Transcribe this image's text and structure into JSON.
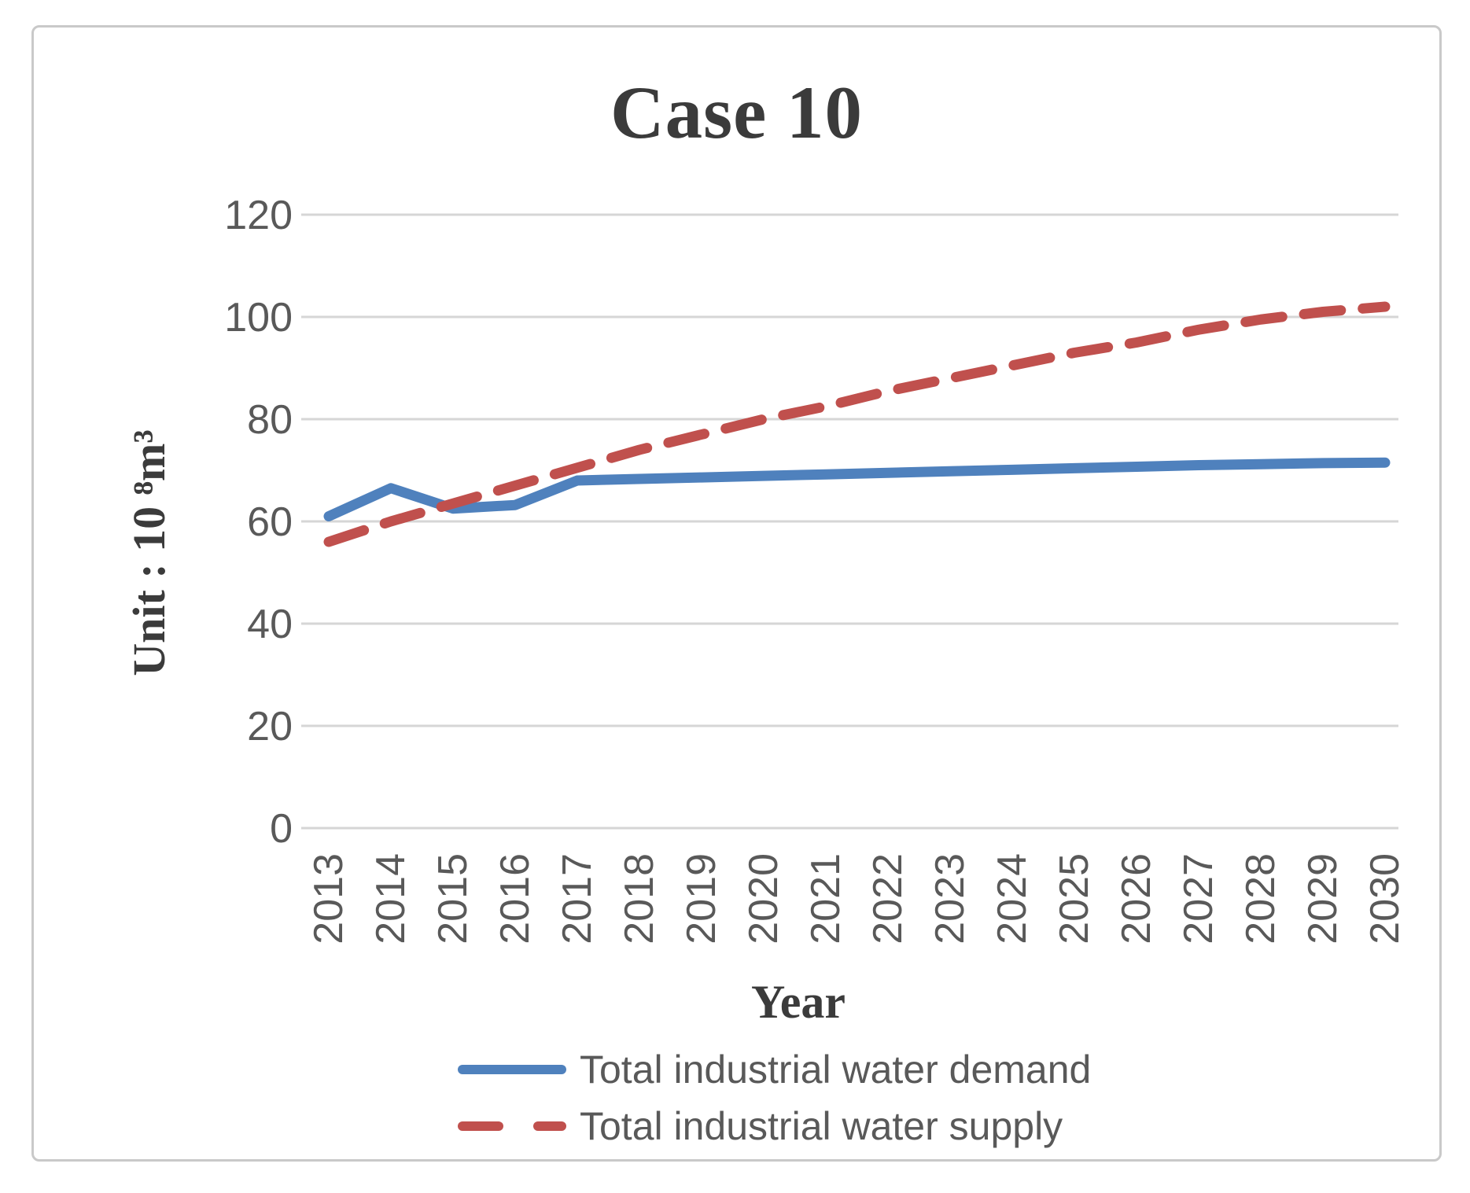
{
  "figure": {
    "title": "Case 10",
    "x_axis_title": "Year",
    "y_axis_title": "Unit : 10 ⁸m³"
  },
  "legend": {
    "items": [
      {
        "label": "Total industrial water demand",
        "series": "demand"
      },
      {
        "label": "Total industrial water supply",
        "series": "supply"
      }
    ]
  },
  "colors": {
    "demand_line": "#4f81bd",
    "supply_line": "#c0504d",
    "gridline": "#d6d6d6",
    "tick_text": "#595959",
    "title_text": "#3b3b3b",
    "frame_border": "#c9c9c9"
  },
  "chart_data": {
    "type": "line",
    "title": "Case 10",
    "xlabel": "Year",
    "ylabel": "Unit : 10⁸m³",
    "categories": [
      "2013",
      "2014",
      "2015",
      "2016",
      "2017",
      "2018",
      "2019",
      "2020",
      "2021",
      "2022",
      "2023",
      "2024",
      "2025",
      "2026",
      "2027",
      "2028",
      "2029",
      "2030"
    ],
    "series": [
      {
        "name": "Total industrial water demand",
        "style": "solid",
        "color": "#4f81bd",
        "values": [
          61,
          66.5,
          62.5,
          63.2,
          68,
          68.3,
          68.6,
          68.9,
          69.2,
          69.5,
          69.8,
          70.1,
          70.4,
          70.7,
          71,
          71.2,
          71.4,
          71.5
        ]
      },
      {
        "name": "Total industrial water supply",
        "style": "dashed",
        "color": "#c0504d",
        "values": [
          56,
          60,
          63.5,
          67,
          70.5,
          74,
          77,
          80,
          82.5,
          85.5,
          88,
          90.5,
          93,
          95,
          97.5,
          99.5,
          101,
          102
        ]
      }
    ],
    "ylim": [
      0,
      120
    ],
    "yticks": [
      0,
      20,
      40,
      60,
      80,
      100,
      120
    ],
    "grid": "horizontal",
    "legend_position": "bottom"
  }
}
